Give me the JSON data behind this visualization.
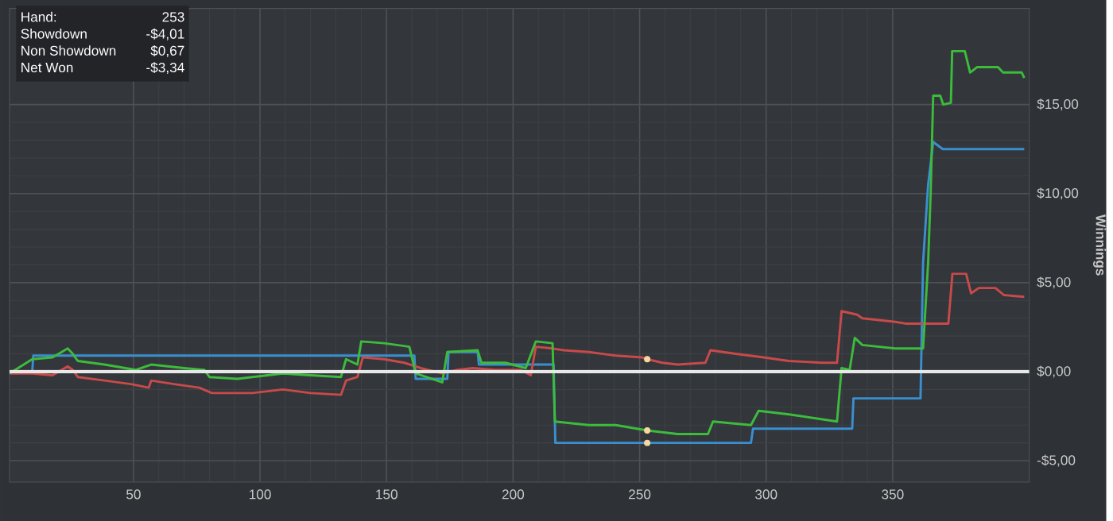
{
  "chart_data": {
    "type": "line",
    "ylabel": "Winnings",
    "annotations": [
      "Hand:",
      "253",
      "Showdown",
      "-$4,01",
      "Non Showdown",
      "$0,67",
      "Net Won",
      "-$3,34"
    ],
    "xlim": [
      1,
      404
    ],
    "ylim": [
      -6.2,
      20.4
    ],
    "xticks": [
      50,
      100,
      150,
      200,
      250,
      300,
      350
    ],
    "yticks": [
      {
        "value": -5,
        "label": "-$5,00"
      },
      {
        "value": 0,
        "label": "$0,00"
      },
      {
        "value": 5,
        "label": "$5,00"
      },
      {
        "value": 10,
        "label": "$10,00"
      },
      {
        "value": 15,
        "label": "$15,00"
      }
    ],
    "grid": true,
    "marker": "none",
    "line_style": "solid",
    "ref_lines": [
      {
        "axis": "y",
        "value": 0,
        "color": "#e8e8e8"
      }
    ],
    "series": [
      {
        "color": "#3a8fd0",
        "x": [
          1,
          10,
          10.4,
          161,
          161.5,
          174,
          174.5,
          186,
          186.5,
          216,
          216.7,
          253,
          294,
          294.8,
          334,
          334.5,
          361,
          362,
          364,
          366,
          369.8,
          402
        ],
        "values": [
          0,
          0,
          0.9,
          0.9,
          -0.4,
          -0.4,
          1.1,
          1.1,
          0.4,
          0.4,
          -4.0,
          -4.0,
          -4.0,
          -3.2,
          -3.2,
          -1.5,
          -1.5,
          6.1,
          10.5,
          12.9,
          12.5,
          12.5
        ]
      },
      {
        "color": "#c84a4a",
        "x": [
          1,
          10,
          18,
          24,
          26,
          28,
          38.5,
          49,
          56,
          57,
          66,
          76,
          81,
          91,
          97,
          109,
          120,
          132,
          134,
          138.5,
          140.6,
          149,
          157,
          163.5,
          172,
          178,
          184,
          193,
          203,
          207,
          209,
          215.6,
          220,
          230,
          240.6,
          251,
          253,
          259,
          265,
          276,
          278,
          288,
          299,
          309,
          322,
          328,
          329.8,
          336,
          338,
          351,
          355,
          372,
          373.6,
          379,
          381,
          384,
          390.6,
          394,
          402
        ],
        "values": [
          -0.1,
          -0.1,
          -0.2,
          0.3,
          0.1,
          -0.3,
          -0.5,
          -0.7,
          -0.9,
          -0.5,
          -0.7,
          -0.9,
          -1.2,
          -1.2,
          -1.2,
          -1.0,
          -1.2,
          -1.3,
          -0.5,
          -0.3,
          0.8,
          0.7,
          0.5,
          0.2,
          -0.1,
          0.1,
          0.2,
          0.1,
          0.1,
          -0.2,
          1.4,
          1.3,
          1.2,
          1.1,
          0.9,
          0.8,
          0.7,
          0.5,
          0.4,
          0.5,
          1.2,
          1.0,
          0.8,
          0.6,
          0.5,
          0.5,
          3.4,
          3.2,
          3.0,
          2.8,
          2.7,
          2.7,
          5.5,
          5.5,
          4.4,
          4.7,
          4.7,
          4.3,
          4.2
        ]
      },
      {
        "color": "#3dbb3d",
        "x": [
          1,
          10,
          18,
          24,
          26,
          28,
          38.5,
          51,
          57,
          70,
          78,
          80,
          91,
          109,
          120,
          132,
          134,
          138.5,
          140,
          149,
          159,
          161.5,
          172,
          174,
          186,
          187.5,
          197,
          205,
          209,
          215.6,
          216.5,
          230,
          240.6,
          253,
          265,
          277,
          279,
          294,
          297,
          309,
          328,
          329.8,
          333,
          335,
          338,
          351,
          362,
          364,
          365,
          366,
          368.8,
          370,
          373,
          373.5,
          378.5,
          380.6,
          383.3,
          391.6,
          393.6,
          401,
          402
        ],
        "values": [
          -0.1,
          0.7,
          0.8,
          1.3,
          1.0,
          0.6,
          0.4,
          0.1,
          0.4,
          0.2,
          0.1,
          -0.3,
          -0.4,
          -0.1,
          -0.2,
          -0.3,
          0.7,
          0.4,
          1.7,
          1.6,
          1.4,
          -0.1,
          -0.6,
          1.1,
          1.2,
          0.5,
          0.5,
          0.2,
          1.7,
          1.6,
          -2.8,
          -3.0,
          -3.0,
          -3.3,
          -3.5,
          -3.5,
          -2.8,
          -3.0,
          -2.2,
          -2.4,
          -2.8,
          0.2,
          0.1,
          1.9,
          1.5,
          1.3,
          1.3,
          6.1,
          10.0,
          15.5,
          15.5,
          15.0,
          15.1,
          18.0,
          18.0,
          16.8,
          17.1,
          17.1,
          16.8,
          16.8,
          16.5
        ]
      },
      {
        "type": "scatter",
        "marker": "circle",
        "color": "#f5d9a0",
        "x": [
          253,
          253,
          253
        ],
        "values": [
          0.7,
          -3.3,
          -4.0
        ]
      }
    ]
  }
}
